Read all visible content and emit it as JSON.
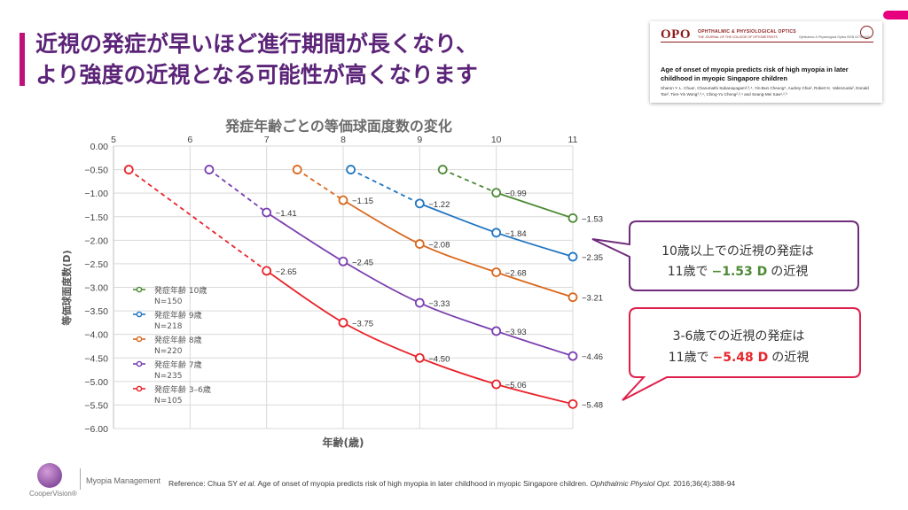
{
  "slide": {
    "title_line1": "近視の発症が早いほど進行期間が長くなり、",
    "title_line2": "より強度の近視となる可能性が高くなります"
  },
  "paper": {
    "logo": "OPO",
    "journal": "OPHTHALMIC & PHYSIOLOGICAL OPTICS",
    "journal_sub": "THE JOURNAL OF THE COLLEGE OF OPTOMETRISTS",
    "issn": "Ophthalmic & Physiological Optics ISSN 0275-5408",
    "title": "Age of onset of myopia predicts risk of high myopia in later childhood in myopic Singapore children",
    "authors": "Sharon Y. L. Chua¹, Charumathi Sabanayagam²,³,⁴, Yin-Bun Cheung⁵, Audrey Chia², Robert K. Valenzuela², Donald Tan², Tien-Yin Wong²,³,⁴, Ching-Yu Cheng²,³,⁴ and Seang-Mei Saw¹,²,³"
  },
  "chart_data": {
    "type": "line",
    "title": "発症年齢ごとの等価球面度数の変化",
    "xlabel": "年齢(歳)",
    "ylabel": "等価球面度数(D)",
    "xlim": [
      5,
      11
    ],
    "ylim": [
      -6.0,
      0.0
    ],
    "x_ticks": [
      5,
      6,
      7,
      8,
      9,
      10,
      11
    ],
    "y_ticks": [
      0.0,
      -0.5,
      -1.0,
      -1.5,
      -2.0,
      -2.5,
      -3.0,
      -3.5,
      -4.0,
      -4.5,
      -5.0,
      -5.5,
      -6.0
    ],
    "y_tick_labels": [
      "0.00",
      "−0.50",
      "−1.00",
      "−1.50",
      "−2.00",
      "−2.50",
      "−3.00",
      "−3.50",
      "−4.00",
      "−4.50",
      "−5.00",
      "−5.50",
      "−6.00"
    ],
    "grid": true,
    "legend_position": "bottom-left",
    "series": [
      {
        "legend_line1": "発症年齢 10歳",
        "legend_line2": "N=150",
        "color": "#4e8a36",
        "points": [
          [
            9.3,
            -0.5
          ],
          [
            10,
            -0.99
          ],
          [
            11,
            -1.53
          ]
        ],
        "labels": [
          "",
          "−0.99",
          "−1.53"
        ]
      },
      {
        "legend_line1": "発症年齢 9歳",
        "legend_line2": "N=218",
        "color": "#2176c1",
        "points": [
          [
            8.1,
            -0.5
          ],
          [
            9,
            -1.22
          ],
          [
            10,
            -1.84
          ],
          [
            11,
            -2.35
          ]
        ],
        "labels": [
          "",
          "−1.22",
          "−1.84",
          "−2.35"
        ]
      },
      {
        "legend_line1": "発症年齢 8歳",
        "legend_line2": "N=220",
        "color": "#d9681e",
        "points": [
          [
            7.4,
            -0.5
          ],
          [
            8,
            -1.15
          ],
          [
            9,
            -2.08
          ],
          [
            10,
            -2.68
          ],
          [
            11,
            -3.21
          ]
        ],
        "labels": [
          "",
          "−1.15",
          "−2.08",
          "−2.68",
          "−3.21"
        ]
      },
      {
        "legend_line1": "発症年齢 7歳",
        "legend_line2": "N=235",
        "color": "#7a3fb0",
        "points": [
          [
            6.25,
            -0.5
          ],
          [
            7,
            -1.41
          ],
          [
            8,
            -2.45
          ],
          [
            9,
            -3.33
          ],
          [
            10,
            -3.93
          ],
          [
            11,
            -4.46
          ]
        ],
        "labels": [
          "",
          "−1.41",
          "−2.45",
          "−3.33",
          "−3.93",
          "−4.46"
        ]
      },
      {
        "legend_line1": "発症年齢 3–6歳",
        "legend_line2": "N=105",
        "color": "#e8232a",
        "points": [
          [
            5.2,
            -0.5
          ],
          [
            7,
            -2.65
          ],
          [
            8,
            -3.75
          ],
          [
            9,
            -4.5
          ],
          [
            10,
            -5.06
          ],
          [
            11,
            -5.48
          ]
        ],
        "labels": [
          "",
          "−2.65",
          "−3.75",
          "−4.50",
          "−5.06",
          "−5.48"
        ]
      }
    ]
  },
  "callouts": [
    {
      "line1": "10歳以上での近視の発症は",
      "pre": "11歳で",
      "value": "−1.53 D",
      "post": "の近視",
      "border_color": "#6f2b7c",
      "value_color": "#4e8a36"
    },
    {
      "line1": "3-6歳での近視の発症は",
      "pre": "11歳で",
      "value": "−5.48 D",
      "post": "の近視",
      "border_color": "#e01e4a",
      "value_color": "#e8232a"
    }
  ],
  "footer": {
    "reference_pre": "Reference: Chua SY ",
    "reference_etal": "et al.",
    "reference_mid": " Age of onset of myopia predicts risk of high myopia in later childhood in myopic Singapore children. ",
    "reference_journal": "Ophthalmic Physiol Opt.",
    "reference_post": " 2016;36(4):388-94",
    "brand": "Myopia Management",
    "logo_text": "CooperVision®"
  }
}
